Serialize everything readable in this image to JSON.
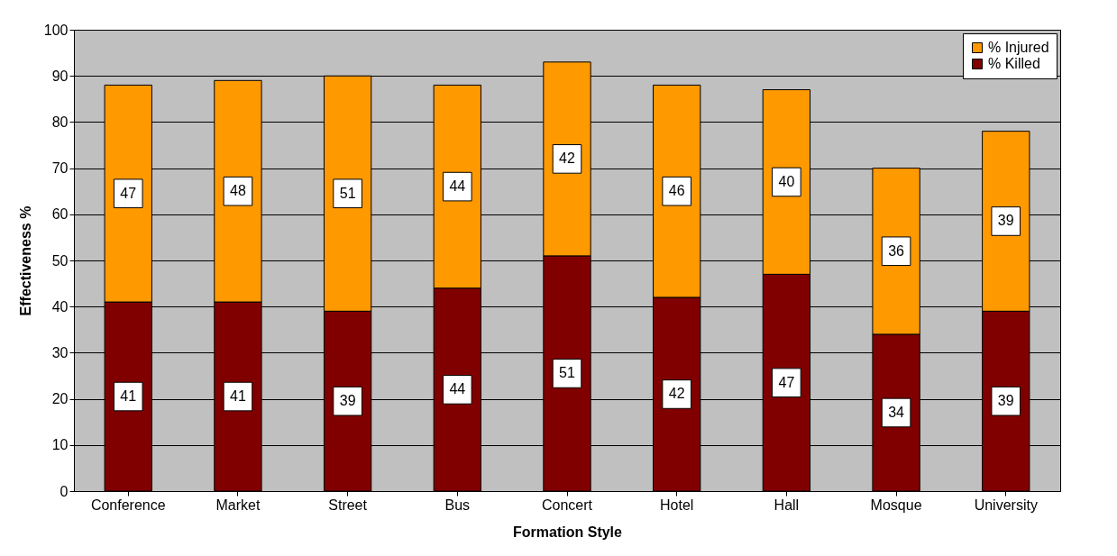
{
  "chart_data": {
    "type": "bar",
    "stacked": true,
    "xlabel": "Formation Style",
    "ylabel": "Effectiveness %",
    "categories": [
      "Conference",
      "Market",
      "Street",
      "Bus",
      "Concert",
      "Hotel",
      "Hall",
      "Mosque",
      "University"
    ],
    "series": [
      {
        "name": "% Killed",
        "color": "#800000",
        "values": [
          41,
          41,
          39,
          44,
          51,
          42,
          47,
          34,
          39
        ]
      },
      {
        "name": "% Injured",
        "color": "#ff9900",
        "values": [
          47,
          48,
          51,
          44,
          42,
          46,
          40,
          36,
          39
        ]
      }
    ],
    "ylim": [
      0,
      100
    ],
    "yticks": [
      0,
      10,
      20,
      30,
      40,
      50,
      60,
      70,
      80,
      90,
      100
    ],
    "grid": "y",
    "legend": "top right",
    "data_labels": true
  }
}
